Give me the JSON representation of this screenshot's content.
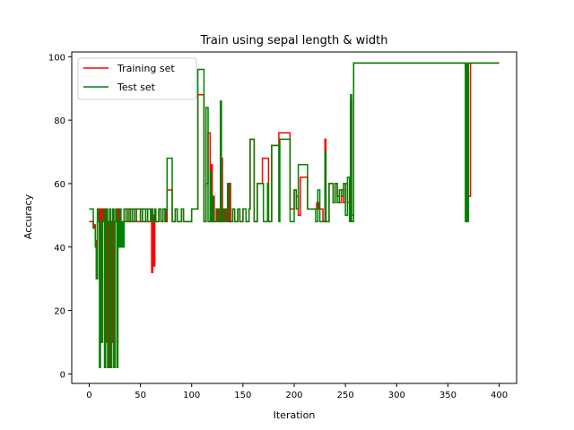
{
  "chart_data": {
    "type": "line",
    "title": "Train using sepal length & width",
    "xlabel": "Iteration",
    "ylabel": "Accuracy",
    "xlim": [
      -17,
      417
    ],
    "ylim": [
      -3,
      101.5
    ],
    "xticks": [
      0,
      50,
      100,
      150,
      200,
      250,
      300,
      350,
      400
    ],
    "yticks": [
      0,
      20,
      40,
      60,
      80,
      100
    ],
    "grid": false,
    "legend_position": "top-left",
    "series": [
      {
        "name": "Training set",
        "color": "#ff0000",
        "points": [
          [
            0,
            48
          ],
          [
            3,
            48
          ],
          [
            4,
            46
          ],
          [
            5,
            47
          ],
          [
            6,
            42
          ],
          [
            7,
            30
          ],
          [
            8,
            48
          ],
          [
            9,
            52
          ],
          [
            10,
            30
          ],
          [
            11,
            52
          ],
          [
            12,
            10
          ],
          [
            13,
            52
          ],
          [
            14,
            48
          ],
          [
            15,
            2
          ],
          [
            16,
            52
          ],
          [
            17,
            10
          ],
          [
            18,
            48
          ],
          [
            19,
            2
          ],
          [
            20,
            52
          ],
          [
            21,
            48
          ],
          [
            22,
            10
          ],
          [
            23,
            52
          ],
          [
            24,
            2
          ],
          [
            25,
            48
          ],
          [
            26,
            52
          ],
          [
            27,
            10
          ],
          [
            28,
            52
          ],
          [
            29,
            40
          ],
          [
            30,
            48
          ],
          [
            31,
            44
          ],
          [
            32,
            48
          ],
          [
            33,
            42
          ],
          [
            34,
            48
          ],
          [
            36,
            52
          ],
          [
            38,
            48
          ],
          [
            40,
            52
          ],
          [
            42,
            48
          ],
          [
            44,
            52
          ],
          [
            46,
            48
          ],
          [
            50,
            52
          ],
          [
            52,
            48
          ],
          [
            55,
            52
          ],
          [
            57,
            48
          ],
          [
            60,
            52
          ],
          [
            61,
            32
          ],
          [
            62,
            50
          ],
          [
            63,
            34
          ],
          [
            64,
            52
          ],
          [
            65,
            48
          ],
          [
            68,
            52
          ],
          [
            70,
            48
          ],
          [
            72,
            52
          ],
          [
            74,
            48
          ],
          [
            76,
            58
          ],
          [
            80,
            58
          ],
          [
            81,
            48
          ],
          [
            84,
            52
          ],
          [
            86,
            48
          ],
          [
            90,
            52
          ],
          [
            92,
            48
          ],
          [
            100,
            52
          ],
          [
            105,
            52
          ],
          [
            106,
            88
          ],
          [
            111,
            88
          ],
          [
            112,
            48
          ],
          [
            114,
            60
          ],
          [
            116,
            76
          ],
          [
            118,
            48
          ],
          [
            119,
            66
          ],
          [
            120,
            48
          ],
          [
            121,
            56
          ],
          [
            122,
            48
          ],
          [
            125,
            52
          ],
          [
            127,
            48
          ],
          [
            129,
            68
          ],
          [
            130,
            48
          ],
          [
            132,
            52
          ],
          [
            134,
            48
          ],
          [
            136,
            60
          ],
          [
            138,
            48
          ],
          [
            140,
            52
          ],
          [
            142,
            48
          ],
          [
            145,
            52
          ],
          [
            147,
            48
          ],
          [
            150,
            52
          ],
          [
            153,
            48
          ],
          [
            156,
            52
          ],
          [
            157,
            74
          ],
          [
            160,
            74
          ],
          [
            161,
            48
          ],
          [
            164,
            60
          ],
          [
            168,
            60
          ],
          [
            169,
            68
          ],
          [
            174,
            68
          ],
          [
            175,
            48
          ],
          [
            178,
            72
          ],
          [
            184,
            72
          ],
          [
            185,
            76
          ],
          [
            195,
            76
          ],
          [
            196,
            52
          ],
          [
            200,
            58
          ],
          [
            202,
            56
          ],
          [
            204,
            50
          ],
          [
            206,
            62
          ],
          [
            212,
            62
          ],
          [
            213,
            52
          ],
          [
            220,
            52
          ],
          [
            222,
            54
          ],
          [
            224,
            52
          ],
          [
            228,
            48
          ],
          [
            230,
            74
          ],
          [
            231,
            48
          ],
          [
            234,
            60
          ],
          [
            236,
            60
          ],
          [
            238,
            54
          ],
          [
            240,
            60
          ],
          [
            242,
            56
          ],
          [
            244,
            54
          ],
          [
            246,
            58
          ],
          [
            248,
            54
          ],
          [
            250,
            60
          ],
          [
            252,
            54
          ],
          [
            254,
            50
          ],
          [
            255,
            86
          ],
          [
            256,
            50
          ],
          [
            258,
            98
          ],
          [
            300,
            98
          ],
          [
            366,
            98
          ],
          [
            367,
            96
          ],
          [
            368,
            56
          ],
          [
            369,
            95
          ],
          [
            370,
            56
          ],
          [
            372,
            98
          ],
          [
            400,
            98
          ]
        ]
      },
      {
        "name": "Test set",
        "color": "#008000",
        "points": [
          [
            0,
            52
          ],
          [
            3,
            52
          ],
          [
            4,
            46
          ],
          [
            5,
            46
          ],
          [
            6,
            40
          ],
          [
            7,
            30
          ],
          [
            8,
            52
          ],
          [
            9,
            48
          ],
          [
            10,
            2
          ],
          [
            11,
            48
          ],
          [
            12,
            10
          ],
          [
            13,
            48
          ],
          [
            14,
            52
          ],
          [
            15,
            2
          ],
          [
            16,
            48
          ],
          [
            17,
            52
          ],
          [
            18,
            2
          ],
          [
            19,
            48
          ],
          [
            20,
            52
          ],
          [
            21,
            2
          ],
          [
            22,
            48
          ],
          [
            23,
            52
          ],
          [
            24,
            2
          ],
          [
            25,
            48
          ],
          [
            26,
            52
          ],
          [
            27,
            2
          ],
          [
            28,
            48
          ],
          [
            29,
            40
          ],
          [
            30,
            52
          ],
          [
            31,
            40
          ],
          [
            32,
            48
          ],
          [
            33,
            40
          ],
          [
            34,
            52
          ],
          [
            36,
            48
          ],
          [
            38,
            52
          ],
          [
            40,
            48
          ],
          [
            42,
            52
          ],
          [
            44,
            48
          ],
          [
            46,
            52
          ],
          [
            50,
            48
          ],
          [
            52,
            52
          ],
          [
            55,
            48
          ],
          [
            57,
            52
          ],
          [
            60,
            48
          ],
          [
            61,
            52
          ],
          [
            62,
            48
          ],
          [
            64,
            52
          ],
          [
            65,
            48
          ],
          [
            68,
            52
          ],
          [
            70,
            48
          ],
          [
            72,
            52
          ],
          [
            74,
            48
          ],
          [
            75,
            52
          ],
          [
            76,
            68
          ],
          [
            80,
            68
          ],
          [
            81,
            48
          ],
          [
            84,
            52
          ],
          [
            86,
            48
          ],
          [
            90,
            52
          ],
          [
            92,
            48
          ],
          [
            100,
            52
          ],
          [
            105,
            52
          ],
          [
            106,
            96
          ],
          [
            111,
            96
          ],
          [
            112,
            48
          ],
          [
            114,
            84
          ],
          [
            116,
            48
          ],
          [
            118,
            64
          ],
          [
            119,
            48
          ],
          [
            120,
            56
          ],
          [
            121,
            48
          ],
          [
            124,
            52
          ],
          [
            126,
            48
          ],
          [
            128,
            86
          ],
          [
            129,
            48
          ],
          [
            131,
            52
          ],
          [
            133,
            48
          ],
          [
            135,
            60
          ],
          [
            137,
            48
          ],
          [
            140,
            52
          ],
          [
            142,
            48
          ],
          [
            145,
            52
          ],
          [
            147,
            48
          ],
          [
            150,
            52
          ],
          [
            153,
            48
          ],
          [
            156,
            52
          ],
          [
            157,
            74
          ],
          [
            160,
            74
          ],
          [
            161,
            48
          ],
          [
            164,
            60
          ],
          [
            168,
            60
          ],
          [
            170,
            48
          ],
          [
            174,
            60
          ],
          [
            175,
            48
          ],
          [
            178,
            72
          ],
          [
            184,
            72
          ],
          [
            185,
            48
          ],
          [
            186,
            74
          ],
          [
            195,
            74
          ],
          [
            196,
            48
          ],
          [
            200,
            58
          ],
          [
            202,
            52
          ],
          [
            204,
            66
          ],
          [
            212,
            66
          ],
          [
            213,
            52
          ],
          [
            220,
            52
          ],
          [
            221,
            48
          ],
          [
            223,
            58
          ],
          [
            225,
            48
          ],
          [
            228,
            48
          ],
          [
            230,
            70
          ],
          [
            231,
            48
          ],
          [
            234,
            60
          ],
          [
            236,
            60
          ],
          [
            238,
            54
          ],
          [
            240,
            60
          ],
          [
            242,
            54
          ],
          [
            244,
            58
          ],
          [
            246,
            56
          ],
          [
            248,
            60
          ],
          [
            250,
            50
          ],
          [
            252,
            62
          ],
          [
            254,
            48
          ],
          [
            255,
            88
          ],
          [
            256,
            48
          ],
          [
            258,
            98
          ],
          [
            300,
            98
          ],
          [
            366,
            98
          ],
          [
            367,
            48
          ],
          [
            368,
            98
          ],
          [
            369,
            48
          ],
          [
            370,
            98
          ],
          [
            400,
            98
          ]
        ]
      }
    ]
  }
}
